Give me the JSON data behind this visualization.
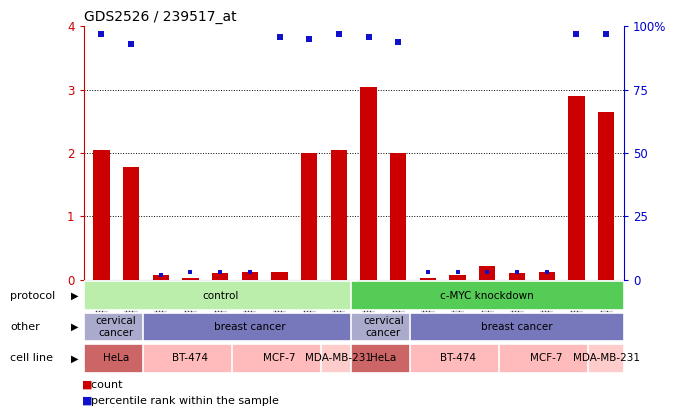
{
  "title": "GDS2526 / 239517_at",
  "samples": [
    "GSM136095",
    "GSM136097",
    "GSM136079",
    "GSM136081",
    "GSM136083",
    "GSM136085",
    "GSM136087",
    "GSM136089",
    "GSM136091",
    "GSM136096",
    "GSM136098",
    "GSM136080",
    "GSM136082",
    "GSM136084",
    "GSM136086",
    "GSM136088",
    "GSM136090",
    "GSM136092"
  ],
  "counts": [
    2.05,
    1.78,
    0.08,
    0.03,
    0.1,
    0.12,
    0.12,
    2.0,
    2.05,
    3.05,
    2.0,
    0.03,
    0.08,
    0.22,
    0.1,
    0.12,
    2.9,
    2.65
  ],
  "percentile": [
    3.88,
    3.72,
    0.08,
    0.12,
    0.12,
    0.12,
    3.84,
    3.8,
    3.88,
    3.84,
    3.76,
    0.12,
    0.12,
    0.12,
    0.12,
    0.12,
    3.88,
    3.88
  ],
  "show_large_dot": [
    true,
    true,
    false,
    false,
    false,
    false,
    true,
    true,
    true,
    true,
    true,
    false,
    false,
    false,
    false,
    false,
    true,
    true
  ],
  "ylim_left": [
    0,
    4
  ],
  "ylim_right": [
    0,
    100
  ],
  "yticks_left": [
    0,
    1,
    2,
    3,
    4
  ],
  "yticks_right": [
    0,
    25,
    50,
    75,
    100
  ],
  "ytick_labels_right": [
    "0",
    "25",
    "50",
    "75",
    "100%"
  ],
  "bar_color": "#cc0000",
  "dot_color": "#1111cc",
  "protocol_row": {
    "label": "protocol",
    "groups": [
      {
        "text": "control",
        "start": 0,
        "end": 9,
        "color": "#bbeeaa"
      },
      {
        "text": "c-MYC knockdown",
        "start": 9,
        "end": 18,
        "color": "#55cc55"
      }
    ]
  },
  "other_row": {
    "label": "other",
    "groups": [
      {
        "text": "cervical\ncancer",
        "start": 0,
        "end": 2,
        "color": "#aaaacc"
      },
      {
        "text": "breast cancer",
        "start": 2,
        "end": 9,
        "color": "#7777bb"
      },
      {
        "text": "cervical\ncancer",
        "start": 9,
        "end": 11,
        "color": "#aaaacc"
      },
      {
        "text": "breast cancer",
        "start": 11,
        "end": 18,
        "color": "#7777bb"
      }
    ]
  },
  "cellline_row": {
    "label": "cell line",
    "groups": [
      {
        "text": "HeLa",
        "start": 0,
        "end": 2,
        "color": "#cc6666"
      },
      {
        "text": "BT-474",
        "start": 2,
        "end": 5,
        "color": "#ffbbbb"
      },
      {
        "text": "MCF-7",
        "start": 5,
        "end": 8,
        "color": "#ffbbbb"
      },
      {
        "text": "MDA-MB-231",
        "start": 8,
        "end": 9,
        "color": "#ffcccc"
      },
      {
        "text": "HeLa",
        "start": 9,
        "end": 11,
        "color": "#cc6666"
      },
      {
        "text": "BT-474",
        "start": 11,
        "end": 14,
        "color": "#ffbbbb"
      },
      {
        "text": "MCF-7",
        "start": 14,
        "end": 17,
        "color": "#ffbbbb"
      },
      {
        "text": "MDA-MB-231",
        "start": 17,
        "end": 18,
        "color": "#ffcccc"
      }
    ]
  },
  "bg_color": "#ffffff",
  "tick_bg_color": "#cccccc",
  "left_axis_color": "#cc0000",
  "right_axis_color": "#0000cc"
}
